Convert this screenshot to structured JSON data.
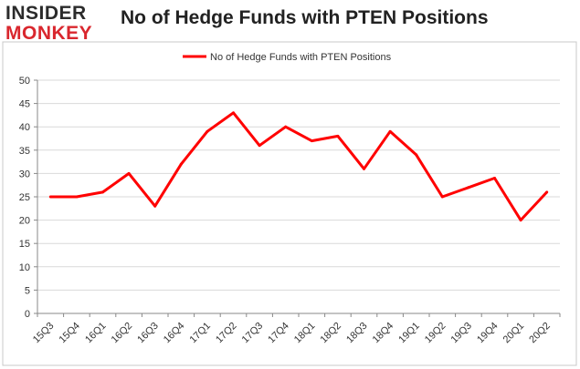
{
  "header": {
    "logo_top": "INSIDER",
    "logo_bottom": "MONKEY",
    "title": "No of Hedge Funds with PTEN Positions"
  },
  "colors": {
    "series": "#ff0000",
    "grid": "#d9d9d9",
    "axis": "#888888",
    "logo_red": "#d9272e",
    "frame": "#c8c8c8"
  },
  "chart_data": {
    "type": "line",
    "title": "No of Hedge Funds with PTEN Positions",
    "xlabel": "",
    "ylabel": "",
    "categories": [
      "15Q3",
      "15Q4",
      "16Q1",
      "16Q2",
      "16Q3",
      "16Q4",
      "17Q1",
      "17Q2",
      "17Q3",
      "17Q4",
      "18Q1",
      "18Q2",
      "18Q3",
      "18Q4",
      "19Q1",
      "19Q2",
      "19Q3",
      "19Q4",
      "20Q1",
      "20Q2"
    ],
    "series": [
      {
        "name": "No of Hedge Funds with PTEN Positions",
        "values": [
          25,
          25,
          26,
          30,
          23,
          32,
          39,
          43,
          36,
          40,
          37,
          38,
          31,
          39,
          34,
          25,
          27,
          29,
          20,
          26
        ]
      }
    ],
    "ylim": [
      0,
      50
    ],
    "yticks": [
      0,
      5,
      10,
      15,
      20,
      25,
      30,
      35,
      40,
      45,
      50
    ],
    "grid": true,
    "legend_position": "top-center"
  }
}
